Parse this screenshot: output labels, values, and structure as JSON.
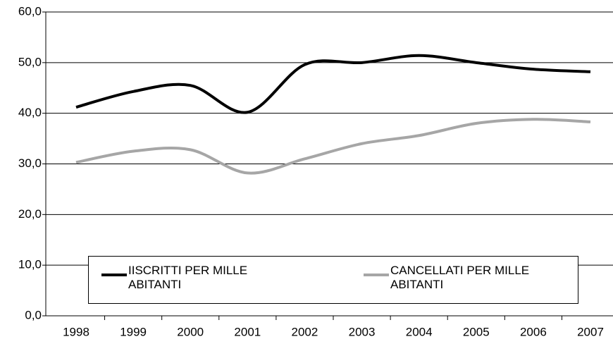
{
  "chart_data": {
    "type": "line",
    "categories": [
      "1998",
      "1999",
      "2000",
      "2001",
      "2002",
      "2003",
      "2004",
      "2005",
      "2006",
      "2007"
    ],
    "series": [
      {
        "name": "IISCRITTI PER MILLE ABITANTI",
        "color": "#000000",
        "values": [
          41.2,
          44.3,
          45.5,
          40.2,
          49.6,
          50.0,
          51.4,
          50.0,
          48.7,
          48.2
        ]
      },
      {
        "name": "CANCELLATI PER MILLE ABITANTI",
        "color": "#a6a6a6",
        "values": [
          30.3,
          32.5,
          32.8,
          28.2,
          31.0,
          34.0,
          35.6,
          38.0,
          38.8,
          38.3
        ]
      }
    ],
    "ylim": [
      0,
      60
    ],
    "yticks": [
      {
        "value": 0,
        "label": "0,0"
      },
      {
        "value": 10,
        "label": "10,0"
      },
      {
        "value": 20,
        "label": "20,0"
      },
      {
        "value": 30,
        "label": "30,0"
      },
      {
        "value": 40,
        "label": "40,0"
      },
      {
        "value": 50,
        "label": "50,0"
      },
      {
        "value": 60,
        "label": "60,0"
      }
    ],
    "grid": true
  }
}
